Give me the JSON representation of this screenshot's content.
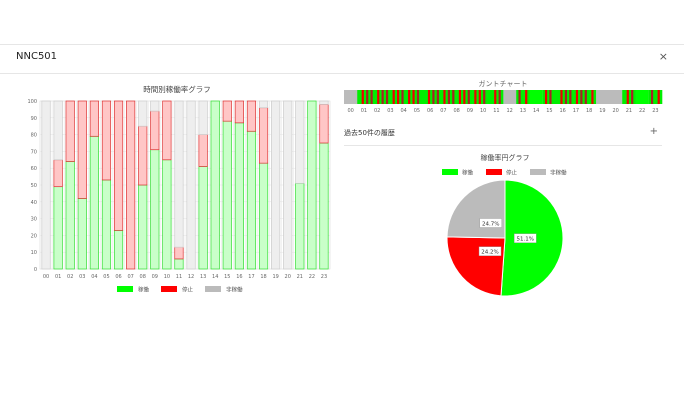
{
  "modal": {
    "title": "NNC501",
    "close_label": "×"
  },
  "hourly": {
    "title": "時間別稼働率グラフ"
  },
  "gantt": {
    "title": "ガントチャート"
  },
  "history": {
    "label": "過去50件の履歴",
    "toggle": "+"
  },
  "pie": {
    "title": "稼働率円グラフ"
  },
  "legend": [
    {
      "label": "稼働",
      "color": "#00ff00"
    },
    {
      "label": "停止",
      "color": "#ff0000"
    },
    {
      "label": "非稼働",
      "color": "#bbbbbb"
    }
  ],
  "chart_data": [
    {
      "type": "bar",
      "title": "時間別稼働率グラフ",
      "categories": [
        "00",
        "01",
        "02",
        "03",
        "04",
        "05",
        "06",
        "07",
        "08",
        "09",
        "10",
        "11",
        "12",
        "13",
        "14",
        "15",
        "16",
        "17",
        "18",
        "19",
        "20",
        "21",
        "22",
        "23"
      ],
      "ylim": [
        0,
        100
      ],
      "yticks": [
        0,
        10,
        20,
        30,
        40,
        50,
        60,
        70,
        80,
        90,
        100
      ],
      "stacked": true,
      "series": [
        {
          "name": "稼働",
          "values": [
            0,
            49,
            64,
            42,
            79,
            53,
            23,
            0,
            50,
            71,
            65,
            6,
            0,
            61,
            100,
            88,
            87,
            82,
            63,
            0,
            0,
            51,
            100,
            75
          ]
        },
        {
          "name": "停止",
          "values": [
            0,
            16,
            36,
            58,
            21,
            47,
            77,
            100,
            35,
            23,
            35,
            7,
            0,
            19,
            0,
            12,
            13,
            18,
            33,
            0,
            0,
            0,
            0,
            23
          ]
        },
        {
          "name": "非稼働",
          "values": [
            100,
            35,
            0,
            0,
            0,
            0,
            0,
            0,
            15,
            6,
            0,
            87,
            100,
            20,
            0,
            0,
            0,
            0,
            4,
            100,
            100,
            49,
            0,
            2
          ]
        }
      ],
      "grid": true,
      "legend": "bottom"
    },
    {
      "type": "pie",
      "title": "稼働率円グラフ",
      "labels": [
        "稼働",
        "停止",
        "非稼働"
      ],
      "values": [
        51.1,
        24.2,
        24.7
      ],
      "value_labels": [
        "51.1%",
        "24.2%",
        "24.7%"
      ],
      "legend": "top"
    },
    {
      "type": "gantt",
      "title": "ガントチャート",
      "hours": [
        "00",
        "01",
        "02",
        "03",
        "04",
        "05",
        "06",
        "07",
        "08",
        "09",
        "10",
        "11",
        "12",
        "13",
        "14",
        "15",
        "16",
        "17",
        "18",
        "19",
        "20",
        "21",
        "22",
        "23"
      ],
      "status_per_hour": [
        "idle",
        "mixed",
        "mixed",
        "mixed",
        "mixed",
        "mixed",
        "mixed",
        "mixed",
        "mixed",
        "mixed",
        "mixed",
        "mixed",
        "idle",
        "mixed",
        "run",
        "mixed",
        "mixed",
        "mixed",
        "mixed",
        "idle",
        "idle",
        "mixed",
        "run",
        "mixed"
      ]
    }
  ]
}
